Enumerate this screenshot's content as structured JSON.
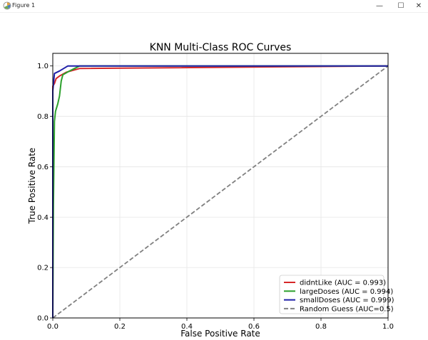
{
  "window": {
    "title": "Figure 1",
    "minimize_glyph": "—",
    "maximize_glyph": "☐",
    "close_glyph": "✕"
  },
  "chart_data": {
    "type": "line",
    "title": "KNN Multi-Class ROC Curves",
    "xlabel": "False Positive Rate",
    "ylabel": "True Positive Rate",
    "xlim": [
      0.0,
      1.0
    ],
    "ylim": [
      0.0,
      1.05
    ],
    "xticks": [
      0.0,
      0.2,
      0.4,
      0.6,
      0.8,
      1.0
    ],
    "yticks": [
      0.0,
      0.2,
      0.4,
      0.6,
      0.8,
      1.0
    ],
    "xtick_labels": [
      "0.0",
      "0.2",
      "0.4",
      "0.6",
      "0.8",
      "1.0"
    ],
    "ytick_labels": [
      "0.0",
      "0.2",
      "0.4",
      "0.6",
      "0.8",
      "1.0"
    ],
    "grid": true,
    "legend_position": "lower right",
    "series": [
      {
        "name": "didntLike (AUC = 0.993)",
        "color": "#d62728",
        "style": "solid",
        "x": [
          0.0,
          0.0,
          0.005,
          0.01,
          0.02,
          0.04,
          0.08,
          1.0
        ],
        "y": [
          0.0,
          0.92,
          0.93,
          0.95,
          0.96,
          0.975,
          0.99,
          1.0
        ]
      },
      {
        "name": "largeDoses (AUC = 0.994)",
        "color": "#2ca02c",
        "style": "solid",
        "x": [
          0.0,
          0.002,
          0.005,
          0.008,
          0.015,
          0.02,
          0.025,
          0.03,
          0.05,
          0.08,
          1.0
        ],
        "y": [
          0.0,
          0.45,
          0.78,
          0.82,
          0.85,
          0.88,
          0.94,
          0.965,
          0.98,
          1.0,
          1.0
        ]
      },
      {
        "name": "smallDoses (AUC = 0.999)",
        "color": "#1f1fa8",
        "style": "solid",
        "x": [
          0.0,
          0.0,
          0.005,
          0.02,
          0.045,
          0.08,
          1.0
        ],
        "y": [
          0.0,
          0.9,
          0.97,
          0.98,
          1.0,
          1.0,
          1.0
        ]
      },
      {
        "name": "Random Guess (AUC=0.5)",
        "color": "#808080",
        "style": "dashed",
        "x": [
          0.0,
          1.0
        ],
        "y": [
          0.0,
          1.0
        ]
      }
    ]
  }
}
